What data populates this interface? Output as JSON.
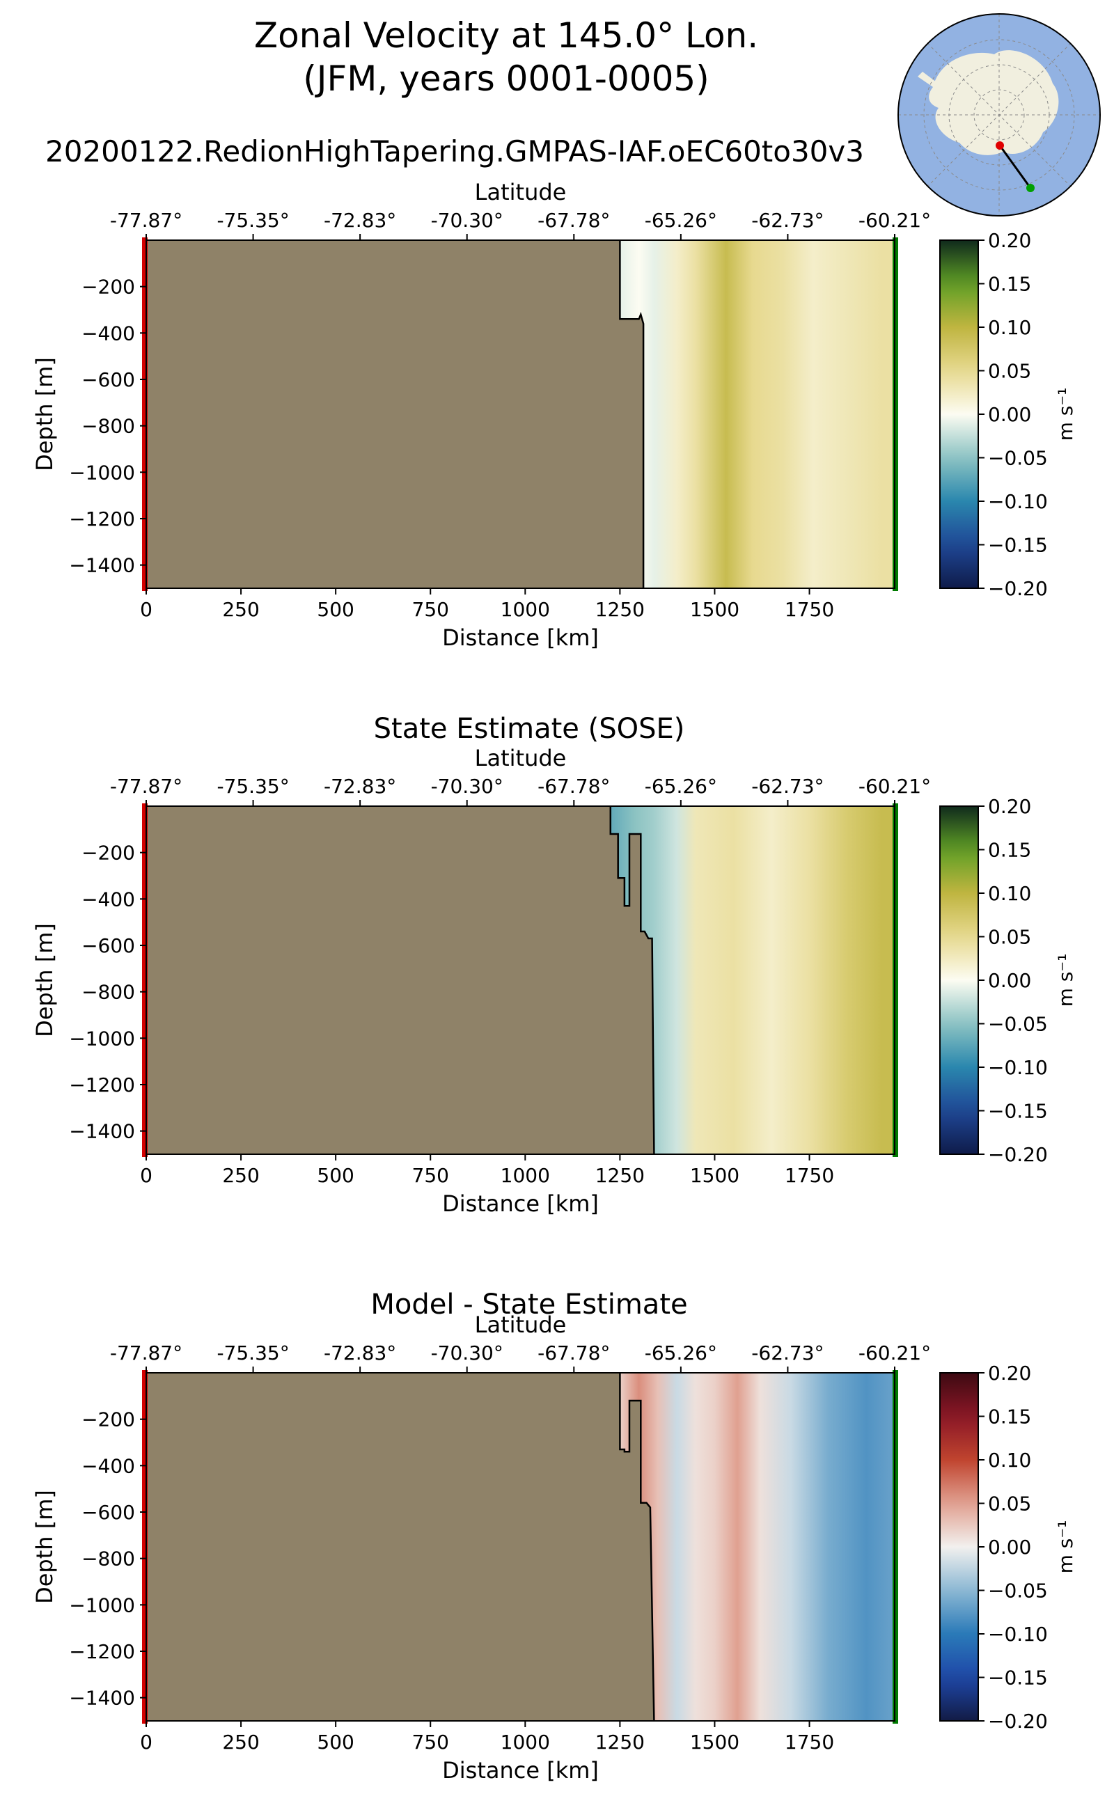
{
  "figure": {
    "title_line1": "Zonal Velocity at 145.0° Lon.",
    "title_line2": "(JFM, years 0001-0005)",
    "run_name": "20200122.RedionHighTapering.GMPAS-IAF.oEC60to30v3"
  },
  "colors": {
    "land": "#8f8268",
    "start_marker": "#d40000",
    "end_marker": "#007a00",
    "map_ocean": "#92b2e2",
    "map_land": "#f1efdf"
  },
  "icons": {
    "locator_map": "antarctica-locator-map"
  },
  "chart_data": [
    {
      "id": "model",
      "type": "heatmap",
      "title": "",
      "xlabel": "Distance [km]",
      "ylabel": "Depth [m]",
      "top_axis_label": "Latitude",
      "xlim": [
        0,
        1975
      ],
      "ylim": [
        -1500,
        0
      ],
      "x_ticks": [
        0,
        250,
        500,
        750,
        1000,
        1250,
        1500,
        1750
      ],
      "y_ticks": [
        -200,
        -400,
        -600,
        -800,
        -1000,
        -1200,
        -1400
      ],
      "lat_ticks": [
        "-77.87°",
        "-75.35°",
        "-72.83°",
        "-70.30°",
        "-67.78°",
        "-65.26°",
        "-62.73°",
        "-60.21°"
      ],
      "colorbar": {
        "label": "m s⁻¹",
        "min": -0.2,
        "max": 0.2,
        "ticks": [
          0.2,
          0.15,
          0.1,
          0.05,
          0.0,
          -0.05,
          -0.1,
          -0.15,
          -0.2
        ],
        "tick_labels": [
          "0.20",
          "0.15",
          "0.10",
          "0.05",
          "0.00",
          "−0.05",
          "−0.10",
          "−0.15",
          "−0.20"
        ],
        "colormap": "velocity"
      },
      "land_boundary": [
        [
          1250,
          0
        ],
        [
          1250,
          -340
        ],
        [
          1300,
          -340
        ],
        [
          1305,
          -320
        ],
        [
          1312,
          -360
        ],
        [
          1312,
          -1500
        ]
      ],
      "columns": [
        {
          "x": 1250,
          "v": -0.01
        },
        {
          "x": 1300,
          "v": 0.0
        },
        {
          "x": 1340,
          "v": -0.01
        },
        {
          "x": 1400,
          "v": 0.02
        },
        {
          "x": 1450,
          "v": 0.04
        },
        {
          "x": 1530,
          "v": 0.09
        },
        {
          "x": 1600,
          "v": 0.05
        },
        {
          "x": 1680,
          "v": 0.04
        },
        {
          "x": 1760,
          "v": 0.02
        },
        {
          "x": 1850,
          "v": 0.03
        },
        {
          "x": 1940,
          "v": 0.04
        }
      ]
    },
    {
      "id": "sose",
      "type": "heatmap",
      "title": "State Estimate (SOSE)",
      "xlabel": "Distance [km]",
      "ylabel": "Depth [m]",
      "top_axis_label": "Latitude",
      "xlim": [
        0,
        1975
      ],
      "ylim": [
        -1500,
        0
      ],
      "x_ticks": [
        0,
        250,
        500,
        750,
        1000,
        1250,
        1500,
        1750
      ],
      "y_ticks": [
        -200,
        -400,
        -600,
        -800,
        -1000,
        -1200,
        -1400
      ],
      "lat_ticks": [
        "-77.87°",
        "-75.35°",
        "-72.83°",
        "-70.30°",
        "-67.78°",
        "-65.26°",
        "-62.73°",
        "-60.21°"
      ],
      "colorbar": {
        "label": "m s⁻¹",
        "min": -0.2,
        "max": 0.2,
        "ticks": [
          0.2,
          0.15,
          0.1,
          0.05,
          0.0,
          -0.05,
          -0.1,
          -0.15,
          -0.2
        ],
        "tick_labels": [
          "0.20",
          "0.15",
          "0.10",
          "0.05",
          "0.00",
          "−0.05",
          "−0.10",
          "−0.15",
          "−0.20"
        ],
        "colormap": "velocity"
      },
      "land_boundary": [
        [
          1225,
          0
        ],
        [
          1225,
          -120
        ],
        [
          1245,
          -120
        ],
        [
          1245,
          -310
        ],
        [
          1262,
          -310
        ],
        [
          1262,
          -430
        ],
        [
          1275,
          -430
        ],
        [
          1275,
          -120
        ],
        [
          1305,
          -120
        ],
        [
          1305,
          -540
        ],
        [
          1315,
          -540
        ],
        [
          1325,
          -570
        ],
        [
          1335,
          -570
        ],
        [
          1340,
          -1500
        ]
      ],
      "columns": [
        {
          "x": 1230,
          "v": -0.07
        },
        {
          "x": 1290,
          "v": -0.05
        },
        {
          "x": 1340,
          "v": -0.04
        },
        {
          "x": 1400,
          "v": -0.02
        },
        {
          "x": 1450,
          "v": 0.03
        },
        {
          "x": 1550,
          "v": 0.04
        },
        {
          "x": 1650,
          "v": 0.02
        },
        {
          "x": 1750,
          "v": 0.04
        },
        {
          "x": 1850,
          "v": 0.07
        },
        {
          "x": 1940,
          "v": 0.09
        }
      ]
    },
    {
      "id": "difference",
      "type": "heatmap",
      "title": "Model - State Estimate",
      "xlabel": "Distance [km]",
      "ylabel": "Depth [m]",
      "top_axis_label": "Latitude",
      "xlim": [
        0,
        1975
      ],
      "ylim": [
        -1500,
        0
      ],
      "x_ticks": [
        0,
        250,
        500,
        750,
        1000,
        1250,
        1500,
        1750
      ],
      "y_ticks": [
        -200,
        -400,
        -600,
        -800,
        -1000,
        -1200,
        -1400
      ],
      "lat_ticks": [
        "-77.87°",
        "-75.35°",
        "-72.83°",
        "-70.30°",
        "-67.78°",
        "-65.26°",
        "-62.73°",
        "-60.21°"
      ],
      "colorbar": {
        "label": "m s⁻¹",
        "min": -0.2,
        "max": 0.2,
        "ticks": [
          0.2,
          0.15,
          0.1,
          0.05,
          0.0,
          -0.05,
          -0.1,
          -0.15,
          -0.2
        ],
        "tick_labels": [
          "0.20",
          "0.15",
          "0.10",
          "0.05",
          "0.00",
          "−0.05",
          "−0.10",
          "−0.15",
          "−0.20"
        ],
        "colormap": "difference"
      },
      "land_boundary": [
        [
          1250,
          0
        ],
        [
          1250,
          -330
        ],
        [
          1262,
          -330
        ],
        [
          1262,
          -340
        ],
        [
          1275,
          -340
        ],
        [
          1275,
          -120
        ],
        [
          1305,
          -120
        ],
        [
          1305,
          -560
        ],
        [
          1320,
          -560
        ],
        [
          1330,
          -580
        ],
        [
          1340,
          -1500
        ]
      ],
      "columns": [
        {
          "x": 1250,
          "v": 0.02
        },
        {
          "x": 1300,
          "v": 0.06
        },
        {
          "x": 1350,
          "v": 0.03
        },
        {
          "x": 1400,
          "v": -0.02
        },
        {
          "x": 1450,
          "v": 0.01
        },
        {
          "x": 1500,
          "v": 0.02
        },
        {
          "x": 1560,
          "v": 0.05
        },
        {
          "x": 1620,
          "v": 0.01
        },
        {
          "x": 1700,
          "v": -0.02
        },
        {
          "x": 1800,
          "v": -0.06
        },
        {
          "x": 1900,
          "v": -0.08
        },
        {
          "x": 1960,
          "v": -0.07
        }
      ]
    }
  ]
}
